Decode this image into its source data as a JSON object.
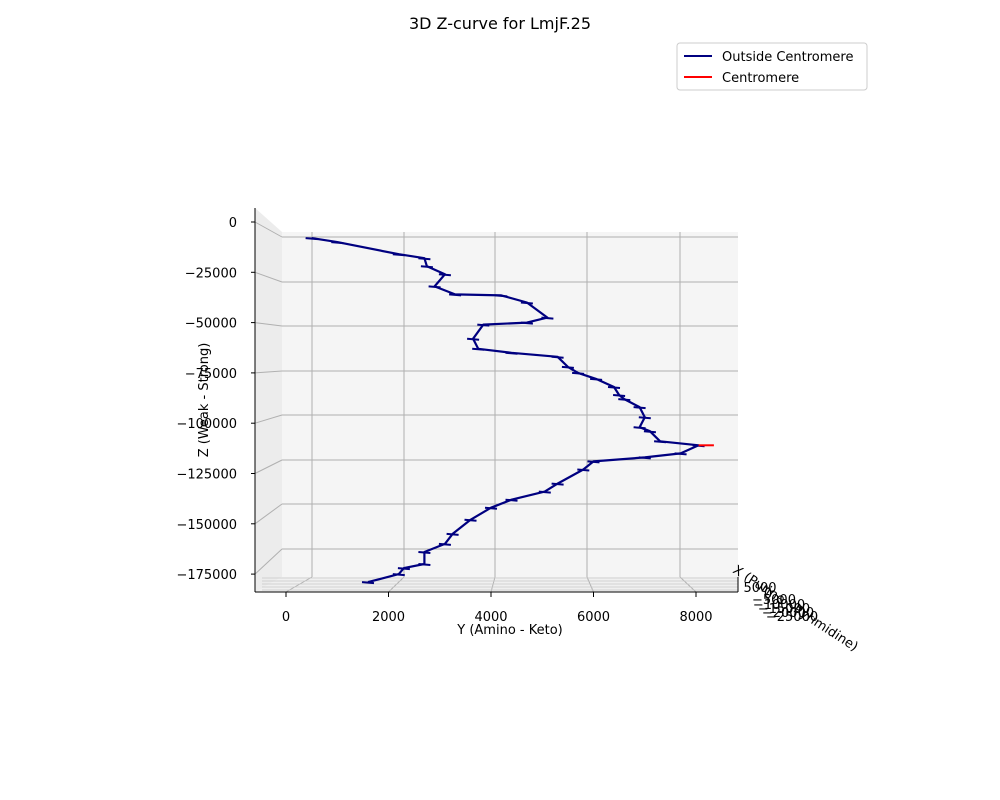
{
  "chart_data": {
    "type": "line",
    "title": "3D Z-curve for LmjF.25",
    "xlabel": "X (Purine - Pyrimidine)",
    "ylabel": "Y (Amino - Keto)",
    "zlabel": "Z (Weak - Strong)",
    "y_ticks": [
      "0",
      "2000",
      "4000",
      "6000",
      "8000"
    ],
    "z_ticks": [
      "0",
      "−25000",
      "−50000",
      "−75000",
      "−100000",
      "−125000",
      "−150000",
      "−175000"
    ],
    "x_ticks": [
      "5000",
      "0",
      "−5000",
      "−10000",
      "−15000",
      "−20000",
      "−25000"
    ],
    "ylim": [
      -600,
      8700
    ],
    "zlim": [
      -184000,
      5000
    ],
    "grid": true,
    "legend_position": "top-right",
    "series": [
      {
        "name": "Outside Centromere",
        "color": "#000080",
        "y": [
          500,
          1000,
          2200,
          2700,
          2750,
          3100,
          2900,
          3300,
          4200,
          4700,
          5100,
          4700,
          3850,
          3650,
          3750,
          4400,
          5300,
          5500,
          5700,
          6050,
          6400,
          6500,
          6600,
          6900,
          7000,
          6900,
          7100,
          7300,
          8050,
          7700,
          7000,
          6000,
          5800,
          5300,
          5050,
          4400,
          4000,
          3600,
          3250,
          3100,
          2700,
          2700,
          2300,
          2200,
          1600
        ],
        "z": [
          -8000,
          -10000,
          -16000,
          -18000,
          -22000,
          -26000,
          -32000,
          -36000,
          -36500,
          -40000,
          -47500,
          -50000,
          -51000,
          -58000,
          -63000,
          -65000,
          -67000,
          -72000,
          -75000,
          -78000,
          -82000,
          -86000,
          -88000,
          -92000,
          -97000,
          -102000,
          -104000,
          -109000,
          -111000,
          -115000,
          -117000,
          -119000,
          -123000,
          -130000,
          -134000,
          -138000,
          -142000,
          -148000,
          -155000,
          -160000,
          -164000,
          -170000,
          -172000,
          -175000,
          -179000
        ]
      },
      {
        "name": "Centromere",
        "color": "#ff0000",
        "y": [
          8050,
          8350
        ],
        "z": [
          -111000,
          -111000
        ]
      }
    ]
  }
}
